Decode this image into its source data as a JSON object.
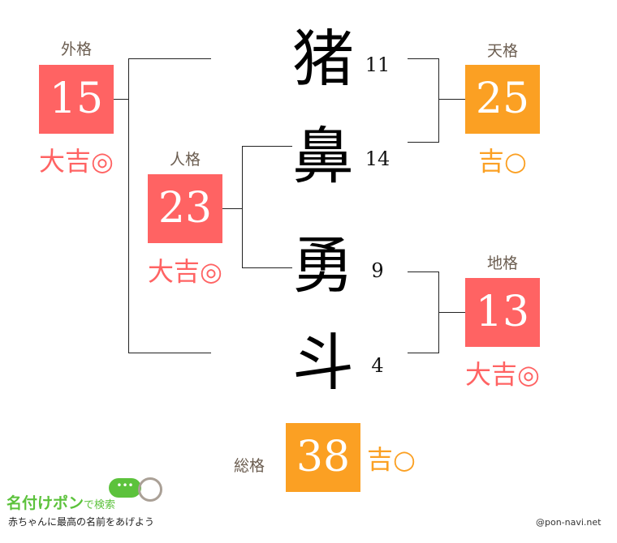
{
  "colors": {
    "great": "#ff6363",
    "good": "#fba023",
    "label": "#6b5d50"
  },
  "name": [
    {
      "char": "猪",
      "strokes": "11"
    },
    {
      "char": "鼻",
      "strokes": "14"
    },
    {
      "char": "勇",
      "strokes": "9"
    },
    {
      "char": "斗",
      "strokes": "4"
    }
  ],
  "gaikaku": {
    "label": "外格",
    "value": "15",
    "fortune": "大吉◎"
  },
  "jinkaku": {
    "label": "人格",
    "value": "23",
    "fortune": "大吉◎"
  },
  "tenkaku": {
    "label": "天格",
    "value": "25",
    "fortune": "吉○"
  },
  "chikaku": {
    "label": "地格",
    "value": "13",
    "fortune": "大吉◎"
  },
  "soukaku": {
    "label": "総格",
    "value": "38",
    "fortune": "吉○"
  },
  "footer": {
    "logo": "名付けポン",
    "logo_suffix": "で検索",
    "tagline": "赤ちゃんに最高の名前をあげよう",
    "credit": "@pon-navi.net"
  }
}
